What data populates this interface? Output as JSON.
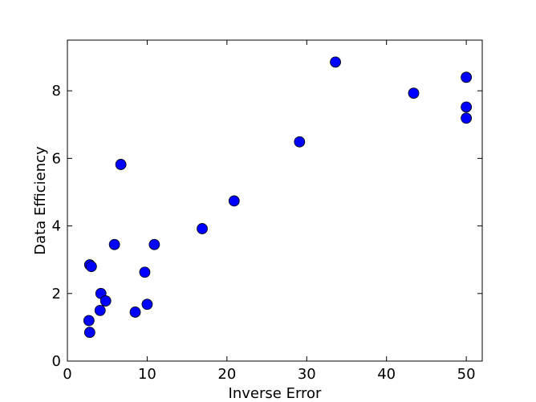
{
  "chart_data": {
    "type": "scatter",
    "title": "",
    "xlabel": "Inverse Error",
    "ylabel": "Data Efficiency",
    "xlim": [
      0,
      52
    ],
    "ylim": [
      0,
      9.5
    ],
    "x_ticks": [
      0,
      10,
      20,
      30,
      40,
      50
    ],
    "y_ticks": [
      0,
      2,
      4,
      6,
      8
    ],
    "grid": false,
    "legend": "none",
    "marker_color": "#0000ff",
    "series": [
      {
        "points": [
          {
            "x": 2.7,
            "y": 1.2
          },
          {
            "x": 2.8,
            "y": 0.85
          },
          {
            "x": 2.8,
            "y": 2.85
          },
          {
            "x": 3.0,
            "y": 2.8
          },
          {
            "x": 4.1,
            "y": 1.5
          },
          {
            "x": 4.2,
            "y": 2.0
          },
          {
            "x": 4.8,
            "y": 1.78
          },
          {
            "x": 5.9,
            "y": 3.45
          },
          {
            "x": 6.7,
            "y": 5.82
          },
          {
            "x": 8.5,
            "y": 1.45
          },
          {
            "x": 9.7,
            "y": 2.63
          },
          {
            "x": 10.0,
            "y": 1.68
          },
          {
            "x": 10.9,
            "y": 3.45
          },
          {
            "x": 16.9,
            "y": 3.92
          },
          {
            "x": 20.9,
            "y": 4.74
          },
          {
            "x": 29.1,
            "y": 6.49
          },
          {
            "x": 33.6,
            "y": 8.85
          },
          {
            "x": 43.4,
            "y": 7.93
          },
          {
            "x": 50.0,
            "y": 8.4
          },
          {
            "x": 50.0,
            "y": 7.52
          },
          {
            "x": 50.0,
            "y": 7.19
          }
        ]
      }
    ]
  }
}
